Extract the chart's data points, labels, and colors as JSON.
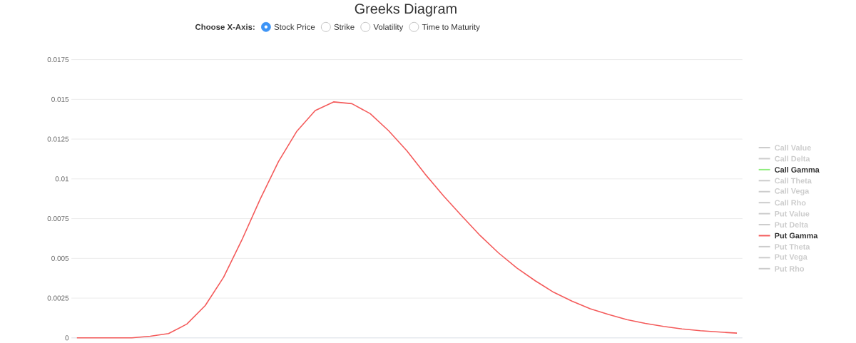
{
  "chart_data": {
    "type": "line",
    "title": "Greeks Diagram",
    "annotations": [
      "Choose X-Axis:",
      "Stock Price",
      "Strike",
      "Volatility",
      "Time to Maturity"
    ],
    "categories": [
      null,
      null,
      null,
      null,
      null,
      null,
      null,
      null,
      null,
      null,
      null,
      null,
      null,
      null,
      null,
      null,
      null,
      null,
      null,
      null,
      null,
      null,
      null,
      null,
      null,
      null,
      null,
      null,
      null,
      null,
      null,
      null,
      null,
      null,
      null,
      null,
      null
    ],
    "series": [
      {
        "name": "Call Value",
        "color": "#cccccc",
        "values": [
          null,
          null,
          null,
          null,
          null,
          null,
          null,
          null,
          null,
          null,
          null,
          null,
          null,
          null,
          null,
          null,
          null,
          null,
          null,
          null,
          null,
          null,
          null,
          null,
          null,
          null,
          null,
          null,
          null,
          null,
          null,
          null,
          null,
          null,
          null,
          null,
          null
        ]
      },
      {
        "name": "Call Delta",
        "color": "#cccccc",
        "values": [
          null,
          null,
          null,
          null,
          null,
          null,
          null,
          null,
          null,
          null,
          null,
          null,
          null,
          null,
          null,
          null,
          null,
          null,
          null,
          null,
          null,
          null,
          null,
          null,
          null,
          null,
          null,
          null,
          null,
          null,
          null,
          null,
          null,
          null,
          null,
          null,
          null
        ]
      },
      {
        "name": "Call Gamma",
        "color": "#90ed7d",
        "values": [
          null,
          null,
          null,
          null,
          null,
          null,
          null,
          null,
          null,
          null,
          null,
          null,
          null,
          null,
          null,
          null,
          null,
          null,
          null,
          null,
          null,
          null,
          null,
          null,
          null,
          null,
          null,
          null,
          null,
          null,
          null,
          null,
          null,
          null,
          null,
          null,
          null
        ]
      },
      {
        "name": "Call Theta",
        "color": "#cccccc",
        "values": [
          null,
          null,
          null,
          null,
          null,
          null,
          null,
          null,
          null,
          null,
          null,
          null,
          null,
          null,
          null,
          null,
          null,
          null,
          null,
          null,
          null,
          null,
          null,
          null,
          null,
          null,
          null,
          null,
          null,
          null,
          null,
          null,
          null,
          null,
          null,
          null,
          null
        ]
      },
      {
        "name": "Call Vega",
        "color": "#cccccc",
        "values": [
          null,
          null,
          null,
          null,
          null,
          null,
          null,
          null,
          null,
          null,
          null,
          null,
          null,
          null,
          null,
          null,
          null,
          null,
          null,
          null,
          null,
          null,
          null,
          null,
          null,
          null,
          null,
          null,
          null,
          null,
          null,
          null,
          null,
          null,
          null,
          null,
          null
        ]
      },
      {
        "name": "Call Rho",
        "color": "#cccccc",
        "values": [
          null,
          null,
          null,
          null,
          null,
          null,
          null,
          null,
          null,
          null,
          null,
          null,
          null,
          null,
          null,
          null,
          null,
          null,
          null,
          null,
          null,
          null,
          null,
          null,
          null,
          null,
          null,
          null,
          null,
          null,
          null,
          null,
          null,
          null,
          null,
          null,
          null
        ]
      },
      {
        "name": "Put Value",
        "color": "#cccccc",
        "values": [
          null,
          null,
          null,
          null,
          null,
          null,
          null,
          null,
          null,
          null,
          null,
          null,
          null,
          null,
          null,
          null,
          null,
          null,
          null,
          null,
          null,
          null,
          null,
          null,
          null,
          null,
          null,
          null,
          null,
          null,
          null,
          null,
          null,
          null,
          null,
          null,
          null
        ]
      },
      {
        "name": "Put Delta",
        "color": "#cccccc",
        "values": [
          null,
          null,
          null,
          null,
          null,
          null,
          null,
          null,
          null,
          null,
          null,
          null,
          null,
          null,
          null,
          null,
          null,
          null,
          null,
          null,
          null,
          null,
          null,
          null,
          null,
          null,
          null,
          null,
          null,
          null,
          null,
          null,
          null,
          null,
          null,
          null,
          null
        ]
      },
      {
        "name": "Put Gamma",
        "color": "#f45b5b",
        "values": [
          0,
          0,
          0,
          0,
          0.0001,
          0.00027,
          0.00087,
          0.00203,
          0.00381,
          0.00616,
          0.00873,
          0.0111,
          0.013,
          0.0143,
          0.01484,
          0.01473,
          0.0141,
          0.01303,
          0.01176,
          0.01029,
          0.00893,
          0.00766,
          0.00643,
          0.00534,
          0.00439,
          0.00359,
          0.00287,
          0.00231,
          0.00183,
          0.00147,
          0.00115,
          0.00091,
          0.00072,
          0.00056,
          0.00045,
          0.00037,
          0.0003
        ]
      },
      {
        "name": "Put Theta",
        "color": "#cccccc",
        "values": [
          null,
          null,
          null,
          null,
          null,
          null,
          null,
          null,
          null,
          null,
          null,
          null,
          null,
          null,
          null,
          null,
          null,
          null,
          null,
          null,
          null,
          null,
          null,
          null,
          null,
          null,
          null,
          null,
          null,
          null,
          null,
          null,
          null,
          null,
          null,
          null,
          null
        ]
      },
      {
        "name": "Put Vega",
        "color": "#cccccc",
        "values": [
          null,
          null,
          null,
          null,
          null,
          null,
          null,
          null,
          null,
          null,
          null,
          null,
          null,
          null,
          null,
          null,
          null,
          null,
          null,
          null,
          null,
          null,
          null,
          null,
          null,
          null,
          null,
          null,
          null,
          null,
          null,
          null,
          null,
          null,
          null,
          null,
          null
        ]
      },
      {
        "name": "Put Rho",
        "color": "#cccccc",
        "values": [
          null,
          null,
          null,
          null,
          null,
          null,
          null,
          null,
          null,
          null,
          null,
          null,
          null,
          null,
          null,
          null,
          null,
          null,
          null,
          null,
          null,
          null,
          null,
          null,
          null,
          null,
          null,
          null,
          null,
          null,
          null,
          null,
          null,
          null,
          null,
          null,
          null
        ]
      }
    ],
    "ylim": [
      0,
      0.0175
    ],
    "yticks": [
      0,
      0.0025,
      0.005,
      0.0075,
      0.01,
      0.0125,
      0.015,
      0.0175
    ],
    "grid": "y",
    "legend": "right",
    "marker": "none",
    "line_style": "solid"
  }
}
